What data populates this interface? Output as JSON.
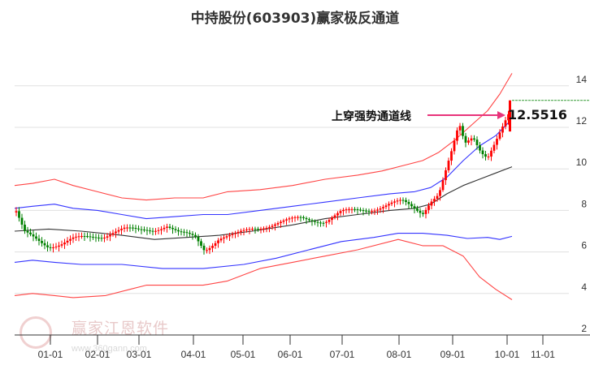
{
  "title": "中持股份(603903)赢家极反通道",
  "annotation": {
    "label": "上穿强势通道线",
    "value": "12.5516",
    "arrow_color": "#e8337a"
  },
  "watermark": {
    "text": "赢家江恩软件",
    "url": "www.360gann.com"
  },
  "colors": {
    "up_candle": "#ff0000",
    "down_candle": "#008000",
    "outer_band": "#ff4444",
    "inner_band": "#3333ff",
    "mid_line": "#333333",
    "grid": "#e0e0e0",
    "target_line": "#339933"
  },
  "chart_data": {
    "type": "candlestick",
    "title": "中持股份(603903)赢家极反通道",
    "y_axis": {
      "ticks": [
        2,
        4,
        6,
        8,
        10,
        12,
        14
      ],
      "range": [
        2,
        14.8
      ],
      "position": "right"
    },
    "x_axis": {
      "ticks": [
        "01-01",
        "02-01",
        "03-01",
        "04-01",
        "05-01",
        "06-01",
        "07-01",
        "08-01",
        "09-01",
        "10-01",
        "11-01"
      ]
    },
    "grid": true,
    "series": [
      {
        "name": "outer_upper",
        "color": "#ff4444",
        "points": [
          [
            18,
            9.2
          ],
          [
            40,
            9.3
          ],
          [
            67,
            9.5
          ],
          [
            90,
            9.2
          ],
          [
            120,
            8.9
          ],
          [
            150,
            8.6
          ],
          [
            180,
            8.5
          ],
          [
            215,
            8.6
          ],
          [
            250,
            8.6
          ],
          [
            280,
            8.9
          ],
          [
            320,
            9.0
          ],
          [
            360,
            9.2
          ],
          [
            400,
            9.5
          ],
          [
            440,
            9.7
          ],
          [
            470,
            9.9
          ],
          [
            500,
            10.2
          ],
          [
            520,
            10.4
          ],
          [
            540,
            10.8
          ],
          [
            560,
            11.4
          ],
          [
            580,
            12.1
          ],
          [
            600,
            12.8
          ],
          [
            615,
            13.6
          ],
          [
            630,
            14.6
          ]
        ]
      },
      {
        "name": "inner_upper",
        "color": "#3333ff",
        "points": [
          [
            18,
            8.1
          ],
          [
            40,
            8.2
          ],
          [
            67,
            8.3
          ],
          [
            90,
            8.1
          ],
          [
            120,
            8.0
          ],
          [
            150,
            7.8
          ],
          [
            180,
            7.6
          ],
          [
            215,
            7.7
          ],
          [
            250,
            7.8
          ],
          [
            280,
            7.8
          ],
          [
            320,
            8.0
          ],
          [
            360,
            8.2
          ],
          [
            400,
            8.4
          ],
          [
            440,
            8.6
          ],
          [
            480,
            8.8
          ],
          [
            510,
            8.9
          ],
          [
            530,
            9.1
          ],
          [
            550,
            9.6
          ],
          [
            570,
            10.4
          ],
          [
            590,
            11.1
          ],
          [
            610,
            11.6
          ],
          [
            625,
            12.2
          ]
        ]
      },
      {
        "name": "mid",
        "color": "#333333",
        "points": [
          [
            18,
            7.0
          ],
          [
            60,
            7.1
          ],
          [
            100,
            7.0
          ],
          [
            150,
            6.8
          ],
          [
            190,
            6.6
          ],
          [
            230,
            6.7
          ],
          [
            270,
            6.8
          ],
          [
            310,
            7.0
          ],
          [
            360,
            7.3
          ],
          [
            400,
            7.6
          ],
          [
            440,
            7.8
          ],
          [
            480,
            8.0
          ],
          [
            510,
            8.1
          ],
          [
            530,
            8.3
          ],
          [
            550,
            8.8
          ],
          [
            570,
            9.2
          ],
          [
            590,
            9.5
          ],
          [
            610,
            9.8
          ],
          [
            630,
            10.1
          ]
        ]
      },
      {
        "name": "inner_lower",
        "color": "#3333ff",
        "points": [
          [
            18,
            5.5
          ],
          [
            40,
            5.6
          ],
          [
            67,
            5.5
          ],
          [
            100,
            5.4
          ],
          [
            150,
            5.4
          ],
          [
            200,
            5.2
          ],
          [
            250,
            5.2
          ],
          [
            300,
            5.4
          ],
          [
            340,
            5.7
          ],
          [
            380,
            6.1
          ],
          [
            420,
            6.5
          ],
          [
            460,
            6.7
          ],
          [
            490,
            6.9
          ],
          [
            520,
            6.9
          ],
          [
            550,
            6.8
          ],
          [
            575,
            6.65
          ],
          [
            600,
            6.7
          ],
          [
            615,
            6.6
          ],
          [
            630,
            6.75
          ]
        ]
      },
      {
        "name": "outer_lower",
        "color": "#ff4444",
        "points": [
          [
            18,
            3.9
          ],
          [
            40,
            4.0
          ],
          [
            67,
            3.9
          ],
          [
            90,
            3.8
          ],
          [
            130,
            3.9
          ],
          [
            160,
            4.2
          ],
          [
            180,
            4.4
          ],
          [
            215,
            4.4
          ],
          [
            250,
            4.4
          ],
          [
            280,
            4.6
          ],
          [
            320,
            5.2
          ],
          [
            360,
            5.5
          ],
          [
            400,
            5.8
          ],
          [
            440,
            6.1
          ],
          [
            490,
            6.6
          ],
          [
            520,
            6.3
          ],
          [
            545,
            6.3
          ],
          [
            570,
            5.8
          ],
          [
            590,
            4.8
          ],
          [
            610,
            4.2
          ],
          [
            630,
            3.7
          ]
        ]
      }
    ],
    "last_close": 12.5516,
    "target_level": 13.3
  },
  "axis": {
    "y_labels": [
      "14",
      "12",
      "10",
      "8",
      "6",
      "4",
      "2"
    ],
    "x_labels": [
      "01-01",
      "02-01",
      "03-01",
      "04-01",
      "05-01",
      "06-01",
      "07-01",
      "08-01",
      "09-01",
      "10-01",
      "11-01"
    ]
  }
}
